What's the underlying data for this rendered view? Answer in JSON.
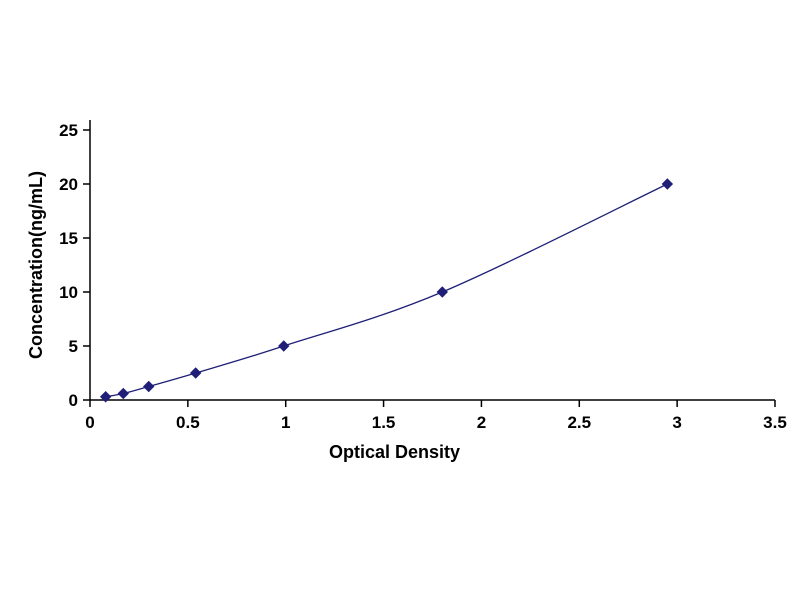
{
  "chart_data": {
    "type": "line",
    "title": "",
    "xlabel": "Optical Density",
    "ylabel": "Concentration(ng/mL)",
    "x": [
      0.08,
      0.17,
      0.3,
      0.54,
      0.99,
      1.8,
      2.95
    ],
    "y": [
      0.3,
      0.6,
      1.25,
      2.5,
      5,
      10,
      20
    ],
    "xlim": [
      0,
      3.5
    ],
    "ylim": [
      0,
      25
    ],
    "xticks": [
      "0",
      "0.5",
      "1",
      "1.5",
      "2",
      "2.5",
      "3",
      "3.5"
    ],
    "xtick_values": [
      0,
      0.5,
      1,
      1.5,
      2,
      2.5,
      3,
      3.5
    ],
    "yticks": [
      "0",
      "5",
      "10",
      "15",
      "20",
      "25"
    ],
    "ytick_values": [
      0,
      5,
      10,
      15,
      20,
      25
    ],
    "grid": false,
    "legend": "none",
    "marker": "diamond",
    "line_color": "#1f1f78",
    "marker_color": "#1f1f78",
    "axis_color": "#000000"
  }
}
